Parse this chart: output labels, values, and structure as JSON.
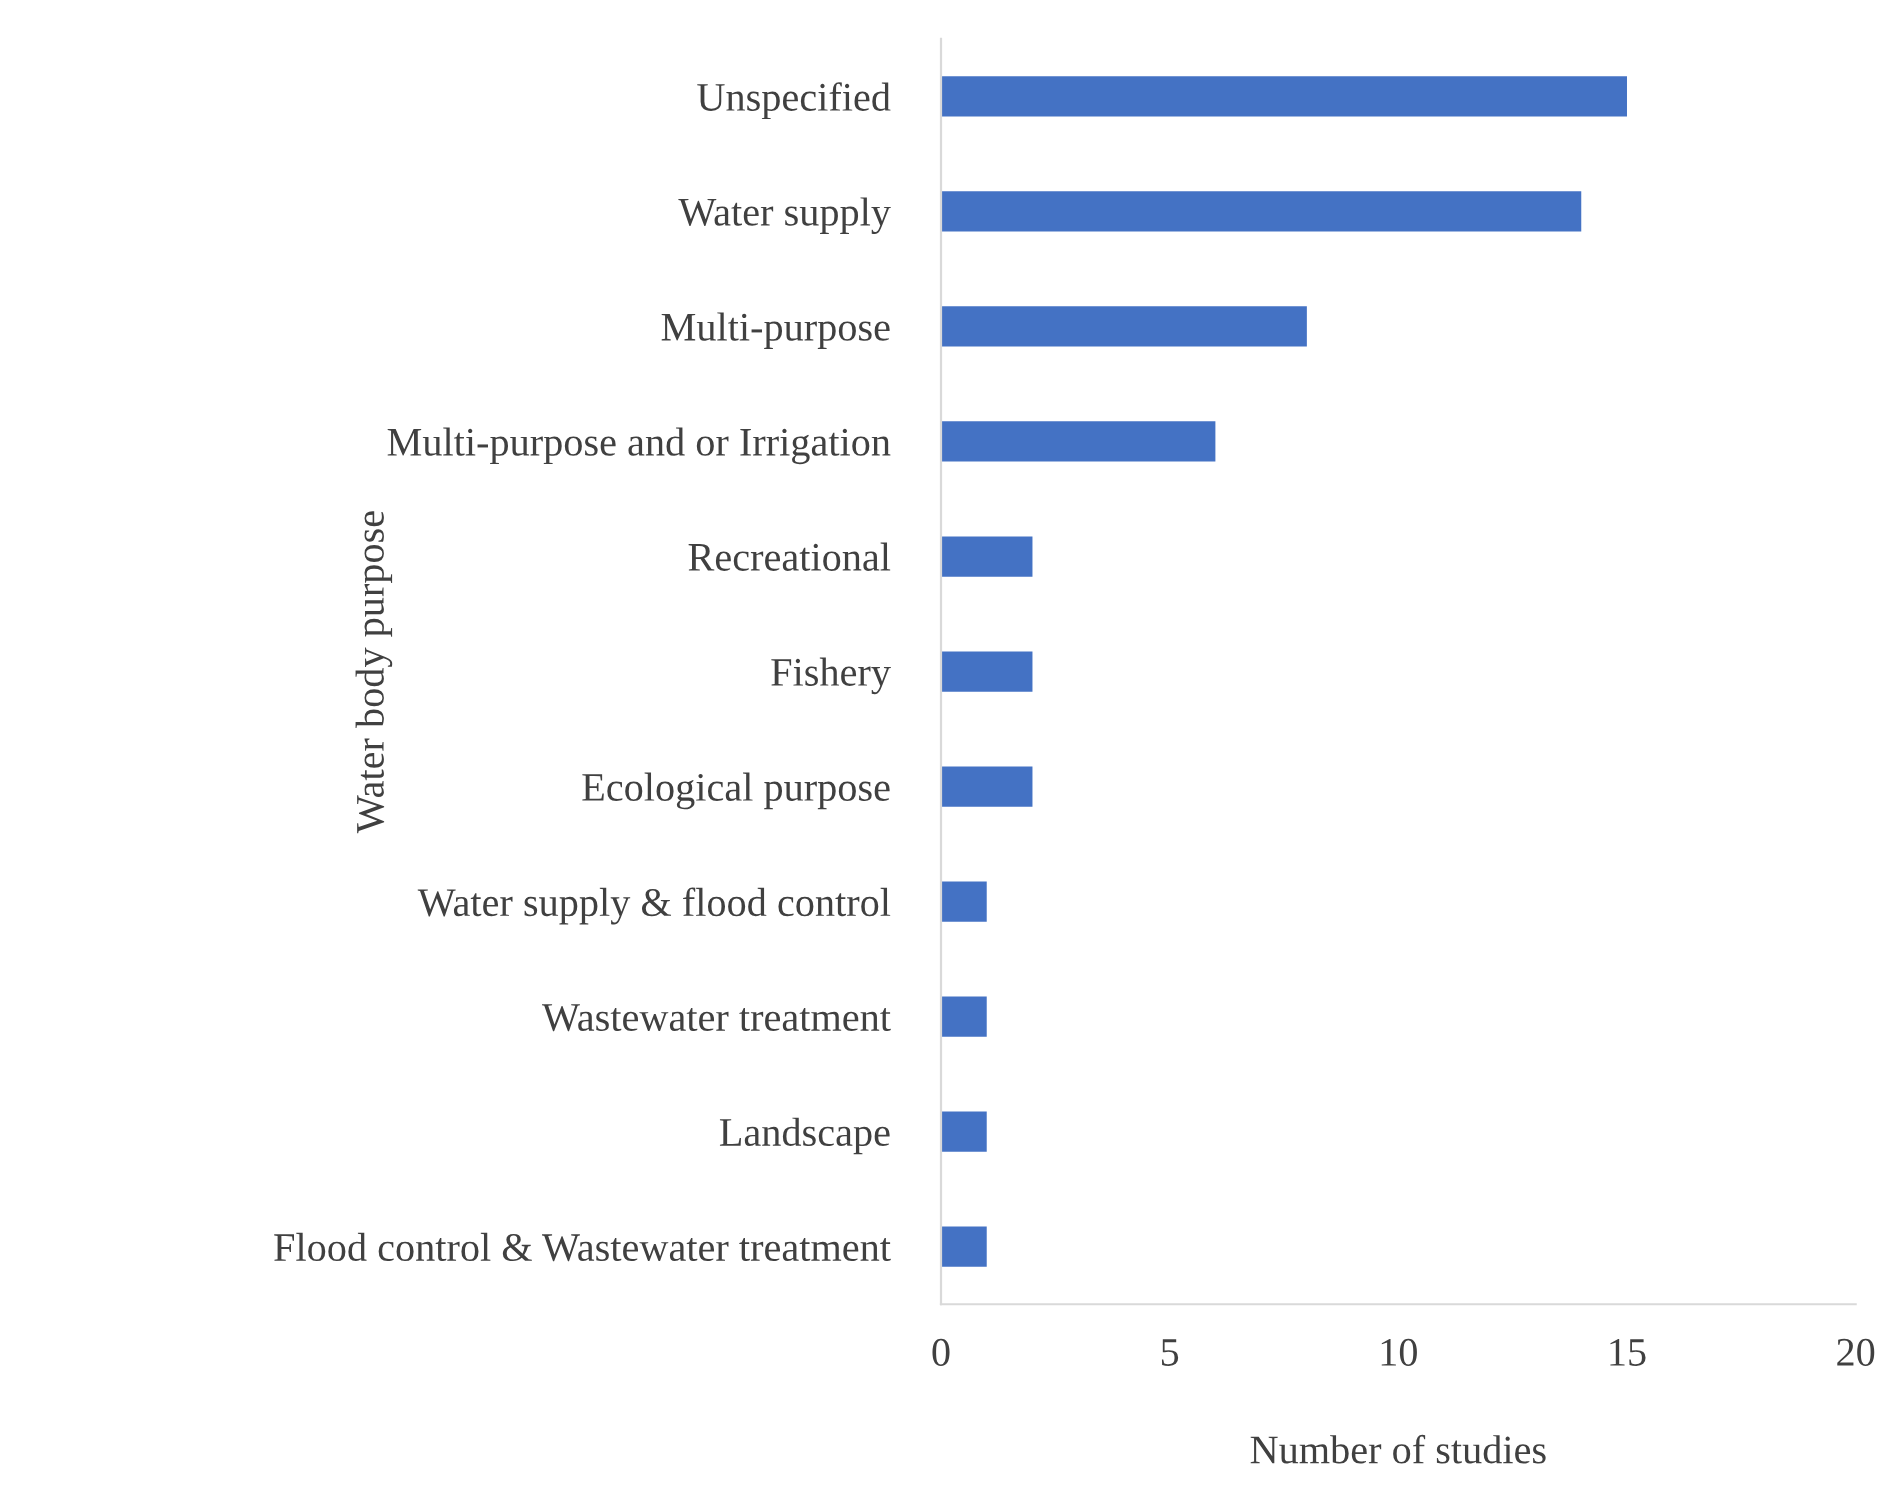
{
  "chart_data": {
    "type": "bar",
    "orientation": "horizontal",
    "xlabel": "Number of studies",
    "ylabel": "Water body purpose",
    "categories": [
      "Unspecified",
      "Water supply",
      "Multi-purpose",
      "Multi-purpose and or Irrigation",
      "Recreational",
      "Fishery",
      "Ecological purpose",
      "Water supply & flood control",
      "Wastewater treatment",
      "Landscape",
      "Flood control & Wastewater treatment"
    ],
    "values": [
      15,
      14,
      8,
      6,
      2,
      2,
      2,
      1,
      1,
      1,
      1
    ],
    "color": "#4472c4",
    "xlim": [
      0,
      20
    ],
    "xticks": [
      0,
      5,
      10,
      15,
      20
    ],
    "grid": false,
    "legend": false
  }
}
